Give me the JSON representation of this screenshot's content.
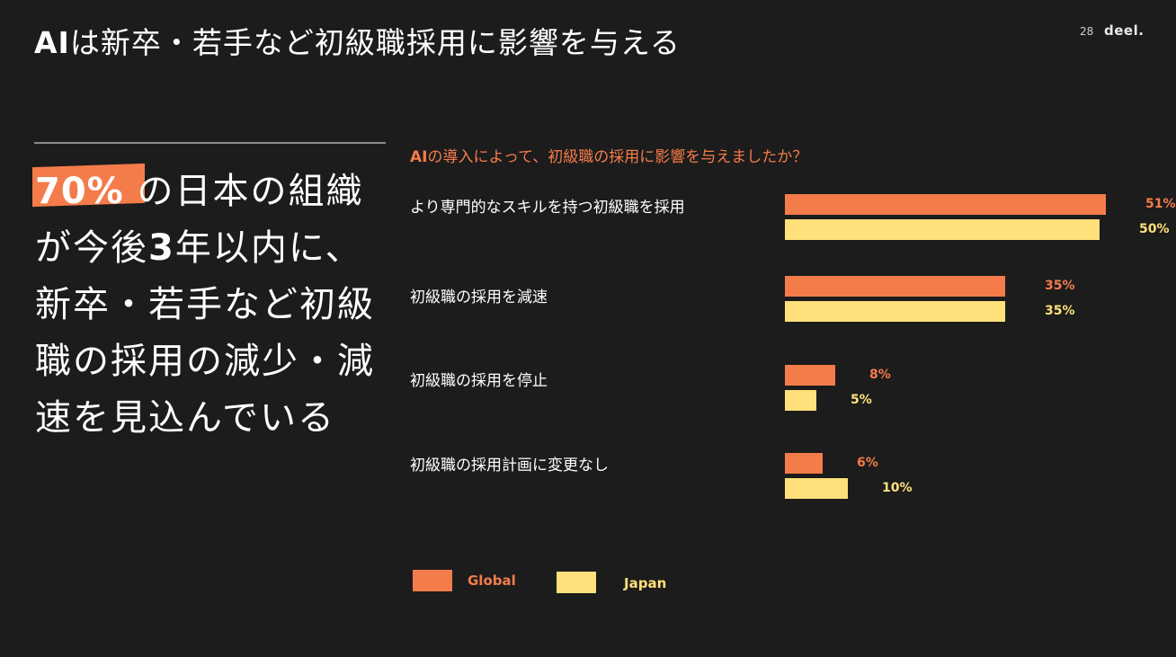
{
  "header": {
    "title_lead": "AI",
    "title_rest": "は新卒・若手など初級職採用に影響を与える",
    "page_number": "28",
    "logo": "deel."
  },
  "highlight": {
    "percent": "70%",
    "text_1": " の日本の組織が今後",
    "bold_number": "3",
    "text_2": "年以内に、新卒・若手など初級職の採用の減少・減速を見込んでいる"
  },
  "colors": {
    "background": "#1c1c1c",
    "global": "#f47c4a",
    "japan": "#ffe07a",
    "highlight": "#f47c4a"
  },
  "chart_data": {
    "type": "bar",
    "orientation": "horizontal",
    "title_lead": "AI",
    "title_rest": "の導入によって、初級職の採用に影響を与えましたか？",
    "categories": [
      "より専門的なスキルを持つ初級職を採用",
      "初級職の採用を減速",
      "初級職の採用を停止",
      "初級職の採用計画に変更なし"
    ],
    "series": [
      {
        "name": "Global",
        "color": "#f47c4a",
        "values": [
          51,
          35,
          8,
          6
        ],
        "labels": [
          "51%",
          "35%",
          "8%",
          "6%"
        ]
      },
      {
        "name": "Japan",
        "color": "#ffe07a",
        "values": [
          50,
          35,
          5,
          10
        ],
        "labels": [
          "50%",
          "35%",
          "5%",
          "10%"
        ]
      }
    ],
    "grid": false,
    "legend_position": "bottom-left"
  }
}
